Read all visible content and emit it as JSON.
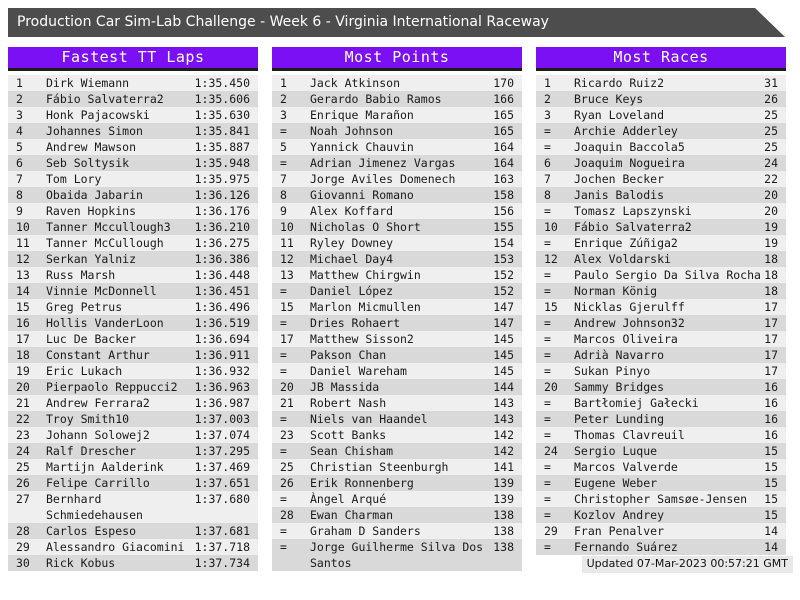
{
  "header": {
    "title": "Production Car Sim-Lab Challenge - Week 6 - Virginia International Raceway"
  },
  "footer": {
    "updated": "Updated 07-Mar-2023 00:57:21 GMT"
  },
  "colors": {
    "accent": "#7b10f5",
    "titlebar_bg": "#4d4d4d",
    "row_light": "#efefef",
    "row_dark": "#d9d9d9",
    "header_shadow": "#1c1c1c",
    "updated_bg": "#e9e9e9",
    "text": "#1a1a1a"
  },
  "boards": [
    {
      "title": "Fastest TT Laps",
      "rows": [
        {
          "rank": "1",
          "name": "Dirk Wiemann",
          "value": "1:35.450"
        },
        {
          "rank": "2",
          "name": "Fábio Salvaterra2",
          "value": "1:35.606"
        },
        {
          "rank": "3",
          "name": "Honk Pajacowski",
          "value": "1:35.630"
        },
        {
          "rank": "4",
          "name": "Johannes Simon",
          "value": "1:35.841"
        },
        {
          "rank": "5",
          "name": "Andrew Mawson",
          "value": "1:35.887"
        },
        {
          "rank": "6",
          "name": "Seb Soltysik",
          "value": "1:35.948"
        },
        {
          "rank": "7",
          "name": "Tom Lory",
          "value": "1:35.975"
        },
        {
          "rank": "8",
          "name": "Obaida Jabarin",
          "value": "1:36.126"
        },
        {
          "rank": "9",
          "name": "Raven Hopkins",
          "value": "1:36.176"
        },
        {
          "rank": "10",
          "name": "Tanner Mccullough3",
          "value": "1:36.210"
        },
        {
          "rank": "11",
          "name": "Tanner McCullough",
          "value": "1:36.275"
        },
        {
          "rank": "12",
          "name": "Serkan Yalniz",
          "value": "1:36.386"
        },
        {
          "rank": "13",
          "name": "Russ Marsh",
          "value": "1:36.448"
        },
        {
          "rank": "14",
          "name": "Vinnie McDonnell",
          "value": "1:36.451"
        },
        {
          "rank": "15",
          "name": "Greg Petrus",
          "value": "1:36.496"
        },
        {
          "rank": "16",
          "name": "Hollis VanderLoon",
          "value": "1:36.519"
        },
        {
          "rank": "17",
          "name": "Luc De Backer",
          "value": "1:36.694"
        },
        {
          "rank": "18",
          "name": "Constant Arthur",
          "value": "1:36.911"
        },
        {
          "rank": "19",
          "name": "Eric Lukach",
          "value": "1:36.932"
        },
        {
          "rank": "20",
          "name": "Pierpaolo Reppucci2",
          "value": "1:36.963"
        },
        {
          "rank": "21",
          "name": "Andrew Ferrara2",
          "value": "1:36.987"
        },
        {
          "rank": "22",
          "name": "Troy Smith10",
          "value": "1:37.003"
        },
        {
          "rank": "23",
          "name": "Johann Solowej2",
          "value": "1:37.074"
        },
        {
          "rank": "24",
          "name": "Ralf Drescher",
          "value": "1:37.295"
        },
        {
          "rank": "25",
          "name": "Martijn Aalderink",
          "value": "1:37.469"
        },
        {
          "rank": "26",
          "name": "Felipe Carrillo",
          "value": "1:37.651"
        },
        {
          "rank": "27",
          "name": "Bernhard Schmiedehausen",
          "value": "1:37.680"
        },
        {
          "rank": "28",
          "name": "Carlos Espeso",
          "value": "1:37.681"
        },
        {
          "rank": "29",
          "name": "Alessandro Giacomini",
          "value": "1:37.718"
        },
        {
          "rank": "30",
          "name": "Rick Kobus",
          "value": "1:37.734"
        }
      ]
    },
    {
      "title": "Most Points",
      "rows": [
        {
          "rank": "1",
          "name": "Jack Atkinson",
          "value": "170"
        },
        {
          "rank": "2",
          "name": "Gerardo Babio Ramos",
          "value": "166"
        },
        {
          "rank": "3",
          "name": "Enrique Marañon",
          "value": "165"
        },
        {
          "rank": "=",
          "name": "Noah Johnson",
          "value": "165"
        },
        {
          "rank": "5",
          "name": "Yannick Chauvin",
          "value": "164"
        },
        {
          "rank": "=",
          "name": "Adrian Jimenez Vargas",
          "value": "164"
        },
        {
          "rank": "7",
          "name": "Jorge Aviles Domenech",
          "value": "163"
        },
        {
          "rank": "8",
          "name": "Giovanni Romano",
          "value": "158"
        },
        {
          "rank": "9",
          "name": "Alex Koffard",
          "value": "156"
        },
        {
          "rank": "10",
          "name": "Nicholas O Short",
          "value": "155"
        },
        {
          "rank": "11",
          "name": "Ryley Downey",
          "value": "154"
        },
        {
          "rank": "12",
          "name": "Michael Day4",
          "value": "153"
        },
        {
          "rank": "13",
          "name": "Matthew Chirgwin",
          "value": "152"
        },
        {
          "rank": "=",
          "name": "Daniel López",
          "value": "152"
        },
        {
          "rank": "15",
          "name": "Marlon Micmullen",
          "value": "147"
        },
        {
          "rank": "=",
          "name": "Dries Rohaert",
          "value": "147"
        },
        {
          "rank": "17",
          "name": "Matthew Sisson2",
          "value": "145"
        },
        {
          "rank": "=",
          "name": "Pakson Chan",
          "value": "145"
        },
        {
          "rank": "=",
          "name": "Daniel Wareham",
          "value": "145"
        },
        {
          "rank": "20",
          "name": "JB Massida",
          "value": "144"
        },
        {
          "rank": "21",
          "name": "Robert Nash",
          "value": "143"
        },
        {
          "rank": "=",
          "name": "Niels van Haandel",
          "value": "143"
        },
        {
          "rank": "23",
          "name": "Scott Banks",
          "value": "142"
        },
        {
          "rank": "=",
          "name": "Sean Chisham",
          "value": "142"
        },
        {
          "rank": "25",
          "name": "Christian Steenburgh",
          "value": "141"
        },
        {
          "rank": "26",
          "name": "Erik Ronnenberg",
          "value": "139"
        },
        {
          "rank": "=",
          "name": "Àngel Arqué",
          "value": "139"
        },
        {
          "rank": "28",
          "name": "Ewan Charman",
          "value": "138"
        },
        {
          "rank": "=",
          "name": "Graham D Sanders",
          "value": "138"
        },
        {
          "rank": "=",
          "name": "Jorge Guilherme Silva Dos Santos",
          "value": "138"
        }
      ]
    },
    {
      "title": "Most Races",
      "rows": [
        {
          "rank": "1",
          "name": "Ricardo Ruiz2",
          "value": "31"
        },
        {
          "rank": "2",
          "name": "Bruce Keys",
          "value": "26"
        },
        {
          "rank": "3",
          "name": "Ryan Loveland",
          "value": "25"
        },
        {
          "rank": "=",
          "name": "Archie Adderley",
          "value": "25"
        },
        {
          "rank": "=",
          "name": "Joaquin Baccola5",
          "value": "25"
        },
        {
          "rank": "6",
          "name": "Joaquim Nogueira",
          "value": "24"
        },
        {
          "rank": "7",
          "name": "Jochen Becker",
          "value": "22"
        },
        {
          "rank": "8",
          "name": "Janis Balodis",
          "value": "20"
        },
        {
          "rank": "=",
          "name": "Tomasz Lapszynski",
          "value": "20"
        },
        {
          "rank": "10",
          "name": "Fábio Salvaterra2",
          "value": "19"
        },
        {
          "rank": "=",
          "name": "Enrique Zúñiga2",
          "value": "19"
        },
        {
          "rank": "12",
          "name": "Alex Voldarski",
          "value": "18"
        },
        {
          "rank": "=",
          "name": "Paulo Sergio Da Silva Rocha",
          "value": "18"
        },
        {
          "rank": "=",
          "name": "Norman König",
          "value": "18"
        },
        {
          "rank": "15",
          "name": "Nicklas Gjerulff",
          "value": "17"
        },
        {
          "rank": "=",
          "name": "Andrew Johnson32",
          "value": "17"
        },
        {
          "rank": "=",
          "name": "Marcos Oliveira",
          "value": "17"
        },
        {
          "rank": "=",
          "name": "Adrià Navarro",
          "value": "17"
        },
        {
          "rank": "=",
          "name": "Sukan Pinyo",
          "value": "17"
        },
        {
          "rank": "20",
          "name": "Sammy Bridges",
          "value": "16"
        },
        {
          "rank": "=",
          "name": "Bartłomiej Gałecki",
          "value": "16"
        },
        {
          "rank": "=",
          "name": "Peter Lunding",
          "value": "16"
        },
        {
          "rank": "=",
          "name": "Thomas Clavreuil",
          "value": "16"
        },
        {
          "rank": "24",
          "name": "Sergio Luque",
          "value": "15"
        },
        {
          "rank": "=",
          "name": "Marcos Valverde",
          "value": "15"
        },
        {
          "rank": "=",
          "name": "Eugene Weber",
          "value": "15"
        },
        {
          "rank": "=",
          "name": "Christopher Samsøe-Jensen",
          "value": "15"
        },
        {
          "rank": "=",
          "name": "Kozlov Andrey",
          "value": "15"
        },
        {
          "rank": "29",
          "name": "Fran Penalver",
          "value": "14"
        },
        {
          "rank": "=",
          "name": "Fernando Suárez",
          "value": "14"
        }
      ]
    }
  ]
}
